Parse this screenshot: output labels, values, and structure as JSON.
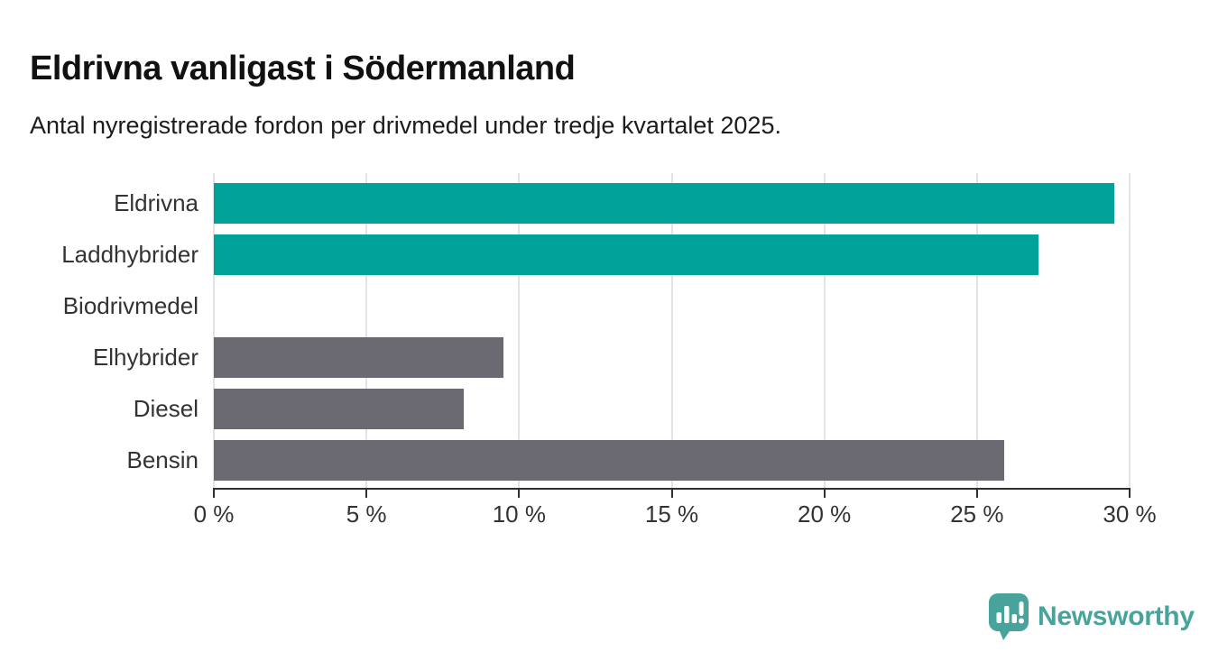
{
  "header": {
    "title": "Eldrivna vanligast i Södermanland",
    "subtitle": "Antal nyregistrerade fordon per drivmedel under tredje kvartalet 2025."
  },
  "chart_data": {
    "type": "bar",
    "orientation": "horizontal",
    "title": "Eldrivna vanligast i Södermanland",
    "subtitle": "Antal nyregistrerade fordon per drivmedel under tredje kvartalet 2025.",
    "categories": [
      "Eldrivna",
      "Laddhybrider",
      "Biodrivmedel",
      "Elhybrider",
      "Diesel",
      "Bensin"
    ],
    "values": [
      29.5,
      27.0,
      0,
      9.5,
      8.2,
      25.9
    ],
    "unit": "%",
    "xlabel": "",
    "ylabel": "",
    "xlim": [
      0,
      30
    ],
    "x_ticks": [
      0,
      5,
      10,
      15,
      20,
      25,
      30
    ],
    "x_tick_labels": [
      "0 %",
      "5 %",
      "10 %",
      "15 %",
      "20 %",
      "25 %",
      "30 %"
    ],
    "bar_colors": [
      "#00a29a",
      "#00a29a",
      "#6b6a72",
      "#6b6a72",
      "#6b6a72",
      "#6b6a72"
    ],
    "grid": true,
    "legend": "none"
  },
  "footer": {
    "brand": "Newsworthy"
  },
  "colors": {
    "teal_bar": "#00a29a",
    "gray_bar": "#6b6a72",
    "gridline": "#e3e3e3",
    "axis": "#2f2f2f",
    "label_text": "#333333",
    "title_text": "#111111",
    "brand_teal": "#47a39c"
  }
}
